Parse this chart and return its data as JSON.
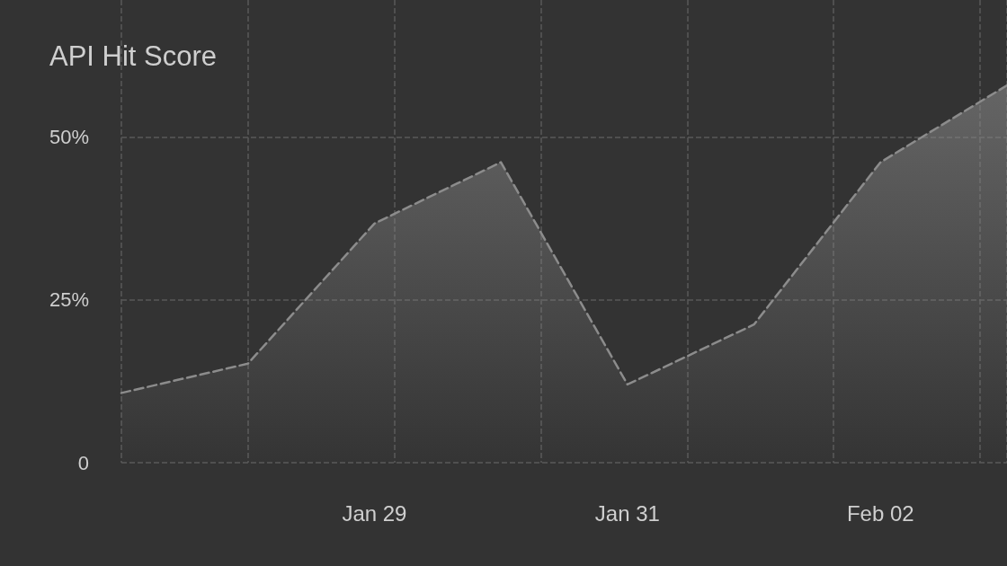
{
  "chart_data": {
    "type": "area",
    "title": "API Hit Score",
    "x": [
      "--01-27",
      "--01-28",
      "--01-29",
      "--01-30",
      "--01-31",
      "--02-01",
      "--02-02",
      "--02-03"
    ],
    "series": [
      {
        "color": "#8c8c8c",
        "values": [
          10.7,
          15.2,
          36.7,
          46.1,
          12.0,
          21.2,
          46.1,
          57.9
        ]
      }
    ],
    "xlim": [
      "--01-27",
      "--02-03"
    ],
    "xticks": [
      {
        "value": "--01-29",
        "label": "Jan 29"
      },
      {
        "value": "--01-31",
        "label": "Jan 31"
      },
      {
        "value": "--02-02",
        "label": "Feb 02"
      }
    ],
    "ylim": [
      0,
      71
    ],
    "yticks": [
      0,
      {
        "value": 25,
        "label": "25%"
      },
      {
        "value": 50,
        "label": "50%"
      }
    ],
    "grid": true,
    "line_style": "dashed",
    "marker": "none"
  }
}
